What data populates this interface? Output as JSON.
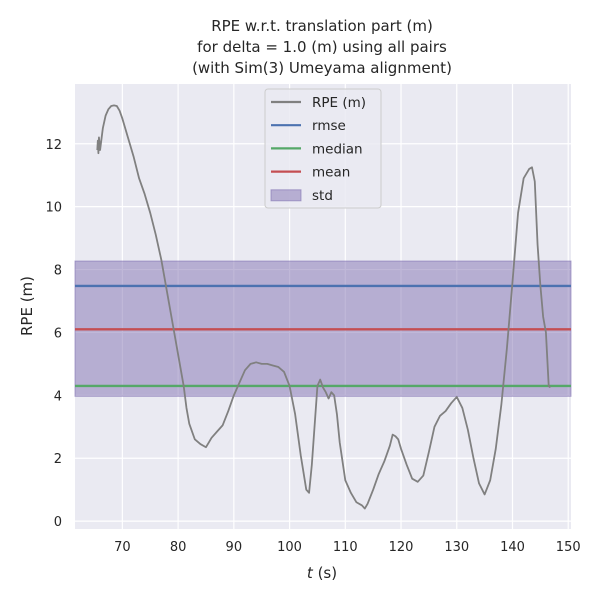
{
  "chart_data": {
    "type": "line",
    "title_lines": [
      "RPE w.r.t. translation part (m)",
      "for delta = 1.0 (m) using all pairs",
      "(with Sim(3) Umeyama alignment)"
    ],
    "xlabel_italic": "t",
    "xlabel_rest": " (s)",
    "ylabel": "RPE (m)",
    "xlim": [
      61.5,
      150.5
    ],
    "ylim": [
      -0.25,
      13.9
    ],
    "xticks": [
      70,
      80,
      90,
      100,
      110,
      120,
      130,
      140,
      150
    ],
    "yticks": [
      0,
      2,
      4,
      6,
      8,
      10,
      12
    ],
    "grid": true,
    "legend_position": "top-center",
    "colors": {
      "background": "#eaeaf2",
      "grid": "#ffffff",
      "rpe": "#808080",
      "rmse": "#4c72b0",
      "median": "#55a868",
      "mean": "#c44e52",
      "std": "#8172b2"
    },
    "series": [
      {
        "name": "RPE (m)",
        "x": [
          65.5,
          65.6,
          65.7,
          65.8,
          66.0,
          66.5,
          67,
          67.5,
          68,
          68.5,
          69,
          69.5,
          70,
          71,
          72,
          73,
          74,
          75,
          76,
          77,
          78,
          79,
          80,
          81,
          81.5,
          82,
          83,
          84,
          85,
          85.5,
          86,
          87,
          88,
          89,
          90,
          91,
          92,
          93,
          94,
          95,
          96,
          97,
          98,
          99,
          100,
          101,
          102,
          103,
          103.5,
          104,
          105,
          105.5,
          106,
          106.5,
          107,
          107.5,
          108,
          108.5,
          109,
          110,
          111,
          112,
          113,
          113.5,
          114,
          115,
          116,
          117,
          118,
          118.5,
          119,
          119.5,
          120,
          121,
          122,
          123,
          124,
          125,
          126,
          127,
          128,
          129,
          130,
          131,
          132,
          133,
          134,
          135,
          136,
          137,
          138,
          139,
          140,
          141,
          142,
          143,
          143.5,
          144,
          144.5,
          145,
          145.5,
          146,
          146.5,
          146.8
        ],
        "values": [
          11.8,
          12.1,
          11.7,
          12.2,
          11.8,
          12.5,
          12.9,
          13.1,
          13.2,
          13.22,
          13.2,
          13.05,
          12.8,
          12.2,
          11.6,
          10.9,
          10.4,
          9.8,
          9.1,
          8.3,
          7.3,
          6.3,
          5.3,
          4.3,
          3.6,
          3.1,
          2.6,
          2.45,
          2.35,
          2.5,
          2.65,
          2.85,
          3.05,
          3.5,
          4.0,
          4.4,
          4.8,
          5.0,
          5.05,
          5.0,
          5.0,
          4.95,
          4.9,
          4.75,
          4.3,
          3.4,
          2.1,
          1.0,
          0.9,
          1.8,
          4.3,
          4.5,
          4.25,
          4.1,
          3.9,
          4.1,
          4.0,
          3.4,
          2.5,
          1.3,
          0.9,
          0.6,
          0.5,
          0.4,
          0.55,
          1.0,
          1.5,
          1.9,
          2.4,
          2.75,
          2.7,
          2.6,
          2.3,
          1.8,
          1.35,
          1.25,
          1.45,
          2.2,
          3.0,
          3.35,
          3.5,
          3.75,
          3.95,
          3.6,
          2.9,
          2.0,
          1.2,
          0.85,
          1.3,
          2.3,
          3.7,
          5.5,
          7.6,
          9.8,
          10.9,
          11.2,
          11.25,
          10.8,
          8.8,
          7.5,
          6.5,
          6.0,
          4.3,
          4.25
        ]
      }
    ],
    "stats": {
      "rmse": 7.48,
      "median": 4.3,
      "mean": 6.1,
      "std_low": 3.97,
      "std_high": 8.27
    },
    "legend": [
      {
        "label": "RPE (m)",
        "kind": "line",
        "color": "#808080"
      },
      {
        "label": "rmse",
        "kind": "line",
        "color": "#4c72b0"
      },
      {
        "label": "median",
        "kind": "line",
        "color": "#55a868"
      },
      {
        "label": "mean",
        "kind": "line",
        "color": "#c44e52"
      },
      {
        "label": "std",
        "kind": "patch",
        "color": "#8172b2"
      }
    ]
  }
}
